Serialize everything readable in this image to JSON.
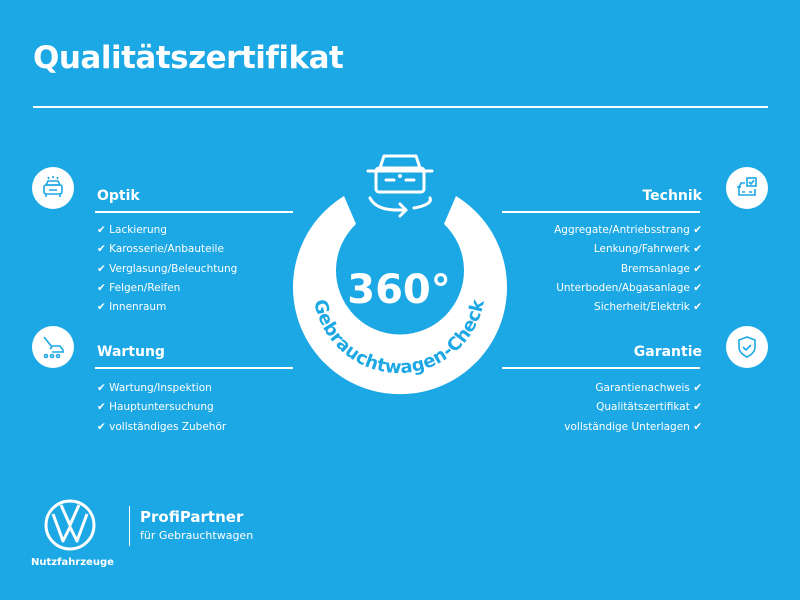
{
  "title": "Qualitätszertifikat",
  "check_mark": "✔",
  "center": {
    "degrees": "360°",
    "ring_text": "Gebrauchtwagen-Check",
    "icon": "car-rotate-icon"
  },
  "sections": {
    "optik": {
      "heading": "Optik",
      "icon": "car-front-icon",
      "items": [
        "Lackierung",
        "Karosserie/Anbauteile",
        "Verglasung/Beleuchtung",
        "Felgen/Reifen",
        "Innenraum"
      ]
    },
    "wartung": {
      "heading": "Wartung",
      "icon": "service-tools-icon",
      "items": [
        "Wartung/Inspektion",
        "Hauptuntersuchung",
        "vollständiges Zubehör"
      ]
    },
    "technik": {
      "heading": "Technik",
      "icon": "car-checklist-icon",
      "items": [
        "Aggregate/Antriebsstrang",
        "Lenkung/Fahrwerk",
        "Bremsanlage",
        "Unterboden/Abgasanlage",
        "Sicherheit/Elektrik"
      ]
    },
    "garantie": {
      "heading": "Garantie",
      "icon": "shield-check-icon",
      "items": [
        "Garantienachweis",
        "Qualitätszertifikat",
        "vollständige Unterlagen"
      ]
    }
  },
  "footer": {
    "brand_label": "Nutzfahrzeuge",
    "partner_title": "ProfiPartner",
    "partner_subtitle": "für Gebrauchtwagen"
  },
  "colors": {
    "background": "#1ca7e5",
    "foreground": "#ffffff"
  }
}
